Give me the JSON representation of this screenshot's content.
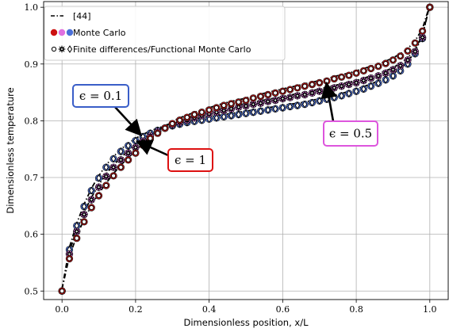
{
  "chart_data": {
    "type": "scatter",
    "xlabel": "Dimensionless position, x/L",
    "ylabel": "Dimensionless temperature",
    "xlim": [
      -0.05,
      1.05
    ],
    "ylim": [
      0.485,
      1.01
    ],
    "xticks": [
      0.0,
      0.2,
      0.4,
      0.6,
      0.8,
      1.0
    ],
    "yticks": [
      0.5,
      0.6,
      0.7,
      0.8,
      0.9,
      1.0
    ],
    "xtick_labels": [
      "0.0",
      "0.2",
      "0.4",
      "0.6",
      "0.8",
      "1.0"
    ],
    "ytick_labels": [
      "0.5",
      "0.6",
      "0.7",
      "0.8",
      "0.9",
      "1.0"
    ],
    "grid": true,
    "legend_position": "top-left",
    "legend": [
      {
        "label": "[44]",
        "marker": "dash-dot-line"
      },
      {
        "label": "Monte Carlo",
        "marker": "filled-circles"
      },
      {
        "label": "Finite differences/Functional Monte Carlo",
        "marker": "open-markers"
      }
    ],
    "annotations": [
      {
        "text": "ϵ = 0.1",
        "box_color": "#3a5ec8",
        "target": [
          0.21,
          0.778
        ]
      },
      {
        "text": "ϵ = 1",
        "box_color": "#dd1111",
        "target": [
          0.21,
          0.762
        ]
      },
      {
        "text": "ϵ = 0.5",
        "box_color": "#dd55dd",
        "target": [
          0.72,
          0.862
        ]
      }
    ],
    "series": [
      {
        "color": "#cc1111",
        "open_marker": "circle",
        "x": [
          0,
          0.02,
          0.04,
          0.06,
          0.08,
          0.1,
          0.12,
          0.14,
          0.16,
          0.18,
          0.2,
          0.22,
          0.24,
          0.26,
          0.28,
          0.3,
          0.32,
          0.34,
          0.36,
          0.38,
          0.4,
          0.42,
          0.44,
          0.46,
          0.48,
          0.5,
          0.52,
          0.54,
          0.56,
          0.58,
          0.6,
          0.62,
          0.64,
          0.66,
          0.68,
          0.7,
          0.72,
          0.74,
          0.76,
          0.78,
          0.8,
          0.82,
          0.84,
          0.86,
          0.88,
          0.9,
          0.92,
          0.94,
          0.96,
          0.98,
          1.0
        ],
        "y": [
          0.5,
          0.557,
          0.593,
          0.622,
          0.647,
          0.668,
          0.686,
          0.703,
          0.718,
          0.731,
          0.743,
          0.757,
          0.769,
          0.778,
          0.787,
          0.795,
          0.801,
          0.806,
          0.811,
          0.815,
          0.819,
          0.823,
          0.827,
          0.83,
          0.833,
          0.836,
          0.84,
          0.843,
          0.846,
          0.849,
          0.852,
          0.855,
          0.858,
          0.861,
          0.864,
          0.867,
          0.87,
          0.874,
          0.877,
          0.88,
          0.884,
          0.888,
          0.892,
          0.896,
          0.901,
          0.907,
          0.914,
          0.923,
          0.937,
          0.958,
          1.0
        ]
      },
      {
        "color": "#e070e0",
        "open_marker": "star",
        "x": [
          0,
          0.02,
          0.04,
          0.06,
          0.08,
          0.1,
          0.12,
          0.14,
          0.16,
          0.18,
          0.2,
          0.22,
          0.24,
          0.26,
          0.28,
          0.3,
          0.32,
          0.34,
          0.36,
          0.38,
          0.4,
          0.42,
          0.44,
          0.46,
          0.48,
          0.5,
          0.52,
          0.54,
          0.56,
          0.58,
          0.6,
          0.62,
          0.64,
          0.66,
          0.68,
          0.7,
          0.72,
          0.74,
          0.76,
          0.78,
          0.8,
          0.82,
          0.84,
          0.86,
          0.88,
          0.9,
          0.92,
          0.94,
          0.96,
          0.98,
          1.0
        ],
        "y": [
          0.5,
          0.565,
          0.605,
          0.635,
          0.661,
          0.683,
          0.702,
          0.718,
          0.731,
          0.743,
          0.753,
          0.764,
          0.773,
          0.781,
          0.787,
          0.793,
          0.797,
          0.801,
          0.805,
          0.809,
          0.812,
          0.815,
          0.818,
          0.821,
          0.824,
          0.826,
          0.829,
          0.831,
          0.834,
          0.836,
          0.839,
          0.841,
          0.844,
          0.846,
          0.849,
          0.852,
          0.855,
          0.858,
          0.861,
          0.864,
          0.867,
          0.871,
          0.875,
          0.879,
          0.884,
          0.89,
          0.897,
          0.907,
          0.922,
          0.947,
          1.0
        ]
      },
      {
        "color": "#4a6fd8",
        "open_marker": "diamond",
        "x": [
          0,
          0.02,
          0.04,
          0.06,
          0.08,
          0.1,
          0.12,
          0.14,
          0.16,
          0.18,
          0.2,
          0.22,
          0.24,
          0.26,
          0.28,
          0.3,
          0.32,
          0.34,
          0.36,
          0.38,
          0.4,
          0.42,
          0.44,
          0.46,
          0.48,
          0.5,
          0.52,
          0.54,
          0.56,
          0.58,
          0.6,
          0.62,
          0.64,
          0.66,
          0.68,
          0.7,
          0.72,
          0.74,
          0.76,
          0.78,
          0.8,
          0.82,
          0.84,
          0.86,
          0.88,
          0.9,
          0.92,
          0.94,
          0.96,
          0.98,
          1.0
        ],
        "y": [
          0.5,
          0.573,
          0.615,
          0.649,
          0.677,
          0.699,
          0.718,
          0.733,
          0.746,
          0.756,
          0.765,
          0.772,
          0.778,
          0.783,
          0.787,
          0.791,
          0.794,
          0.797,
          0.799,
          0.801,
          0.803,
          0.805,
          0.807,
          0.809,
          0.811,
          0.813,
          0.815,
          0.817,
          0.819,
          0.821,
          0.823,
          0.825,
          0.827,
          0.829,
          0.832,
          0.835,
          0.838,
          0.841,
          0.844,
          0.848,
          0.852,
          0.856,
          0.861,
          0.866,
          0.872,
          0.879,
          0.888,
          0.9,
          0.918,
          0.945,
          1.0
        ]
      }
    ]
  }
}
